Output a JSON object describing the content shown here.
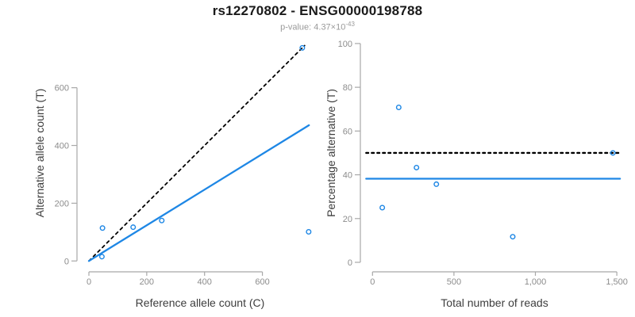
{
  "header": {
    "title": "rs12270802 - ENSG00000198788",
    "subtitle_base": "p-value: 4.37×10",
    "subtitle_exponent": "-43"
  },
  "colors": {
    "accent_blue": "#1E87E5",
    "line_black": "#000000",
    "axis_line": "#A8A8A8",
    "tick_label": "#8C8C8C",
    "axis_title": "#3D3D3D",
    "title_text": "#1A1A1A",
    "subtitle_text": "#9A9A9A"
  },
  "chart_data": [
    {
      "type": "scatter",
      "name": "allele-counts",
      "xlabel": "Reference allele count (C)",
      "ylabel": "Alternative allele count (T)",
      "x_ticks": [
        0,
        200,
        400,
        600
      ],
      "x_tick_labels": [
        "0",
        "200",
        "400",
        "600"
      ],
      "y_ticks": [
        0,
        200,
        400,
        600
      ],
      "y_tick_labels": [
        "0",
        "200",
        "400",
        "600"
      ],
      "xlim": [
        0,
        772
      ],
      "ylim": [
        0,
        752
      ],
      "grid": false,
      "legend": null,
      "points": [
        [
          45,
          15
        ],
        [
          47,
          114
        ],
        [
          153,
          117
        ],
        [
          252,
          140
        ],
        [
          760,
          101
        ],
        [
          738,
          738
        ]
      ],
      "lines": [
        {
          "name": "identity-line",
          "style": "dashed",
          "color": "black",
          "x1": 0,
          "y1": 0,
          "x2": 746,
          "y2": 746
        },
        {
          "name": "fit-line",
          "style": "solid",
          "color": "blue",
          "x1": 0,
          "y1": 0,
          "x2": 761,
          "y2": 470
        }
      ]
    },
    {
      "type": "scatter",
      "name": "percentage-vs-reads",
      "xlabel": "Total number of reads",
      "ylabel": "Percentage alternative (T)",
      "x_ticks": [
        0,
        500,
        1000,
        1500
      ],
      "x_tick_labels": [
        "0",
        "500",
        "1,000",
        "1,500"
      ],
      "y_ticks": [
        0,
        20,
        40,
        60,
        80,
        100
      ],
      "y_tick_labels": [
        "0",
        "20",
        "40",
        "60",
        "80",
        "100"
      ],
      "xlim": [
        0,
        1520
      ],
      "ylim": [
        0,
        100
      ],
      "grid": false,
      "legend": null,
      "points": [
        [
          60,
          25
        ],
        [
          161,
          70.8
        ],
        [
          270,
          43.3
        ],
        [
          392,
          35.7
        ],
        [
          861,
          11.7
        ],
        [
          1476,
          50
        ]
      ],
      "hlines": [
        {
          "name": "fifty-percent-line",
          "style": "dotted",
          "color": "black",
          "y": 50
        },
        {
          "name": "mean-percentage-line",
          "style": "solid",
          "color": "blue",
          "y": 38.2
        }
      ]
    }
  ]
}
